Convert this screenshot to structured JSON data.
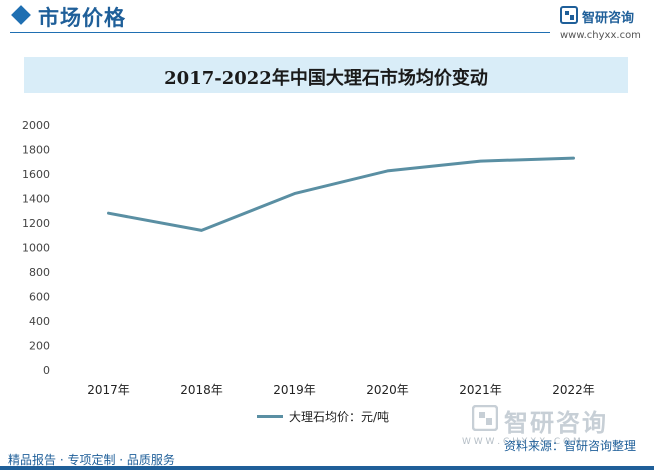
{
  "header": {
    "section_title": "市场价格",
    "brand_name": "智研咨询",
    "brand_url": "www.chyxx.com"
  },
  "chart_data": {
    "type": "line",
    "title": "2017-2022年中国大理石市场均价变动",
    "categories": [
      "2017年",
      "2018年",
      "2019年",
      "2020年",
      "2021年",
      "2022年"
    ],
    "series": [
      {
        "name": "大理石均价：元/吨",
        "values": [
          1280,
          1140,
          1440,
          1625,
          1705,
          1730
        ]
      }
    ],
    "ylim": [
      0,
      2000
    ],
    "yticks": [
      0,
      200,
      400,
      600,
      800,
      1000,
      1200,
      1400,
      1600,
      1800,
      2000
    ],
    "grid": false,
    "legend_position": "bottom",
    "line_color": "#5a8fa3"
  },
  "footer": {
    "left_text": "精品报告 · 专项定制 · 品质服务",
    "source_text": "资料来源：智研咨询整理",
    "brand_name": "智研咨询",
    "dots": "W W W . C H Y X X . C O M"
  }
}
